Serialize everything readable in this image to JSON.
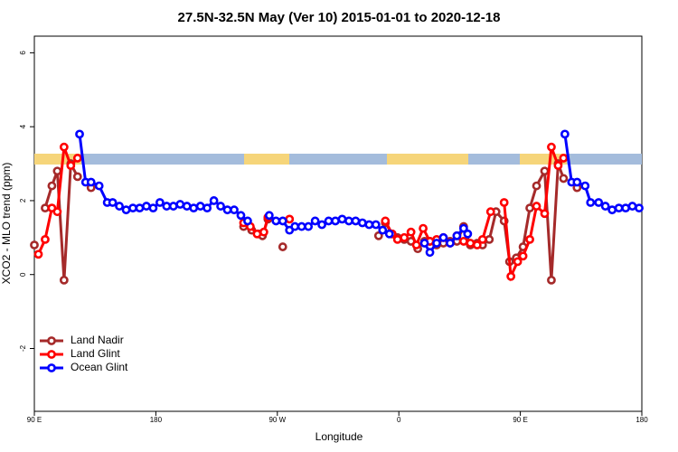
{
  "chart_data": {
    "type": "line",
    "title": "27.5N-32.5N May (Ver 10)   2015-01-01 to 2020-12-18",
    "x_label": "Longitude",
    "y_label": "XCO2 - MLO trend (ppm)",
    "xlim": [
      90,
      540
    ],
    "ylim": [
      -3.7,
      6.45
    ],
    "xticks": [
      {
        "value": 90,
        "label": "90 E"
      },
      180,
      {
        "value": 270,
        "label": "90 W"
      },
      {
        "value": 360,
        "label": "0"
      },
      {
        "value": 450,
        "label": "90 E"
      },
      {
        "value": 540,
        "label": "180"
      }
    ],
    "yticks": [
      -2,
      0,
      2,
      4,
      6
    ],
    "legend": "bottomleft",
    "series": [
      {
        "name": "Land Nadir",
        "color": "#a52a2a",
        "x": [
          90,
          98,
          103,
          107,
          112,
          117,
          122,
          132,
          245,
          251,
          256,
          259,
          263,
          274,
          345,
          350,
          355,
          359,
          364,
          369,
          374,
          379,
          383,
          388,
          393,
          398,
          403,
          408,
          413,
          418,
          422,
          427,
          432,
          438,
          442,
          447,
          452,
          457,
          462,
          468,
          473,
          478,
          482,
          492
        ],
        "values": [
          0.8,
          1.8,
          2.4,
          2.8,
          -0.15,
          3.0,
          2.65,
          2.35,
          1.3,
          1.2,
          1.1,
          1.05,
          1.5,
          0.75,
          1.05,
          1.4,
          1.1,
          1.0,
          0.95,
          0.9,
          0.7,
          0.9,
          0.9,
          0.8,
          0.85,
          0.9,
          0.9,
          1.3,
          0.8,
          0.85,
          0.8,
          0.95,
          1.7,
          1.45,
          0.35,
          0.45,
          0.75,
          1.8,
          2.4,
          2.8,
          -0.15,
          3.0,
          2.6,
          2.35
        ]
      },
      {
        "name": "Land Glint",
        "color": "#ff0000",
        "x": [
          93,
          98,
          103,
          107,
          112,
          117,
          122,
          245,
          250,
          255,
          260,
          263,
          279,
          350,
          355,
          359,
          364,
          369,
          373,
          378,
          383,
          388,
          393,
          398,
          403,
          408,
          413,
          418,
          422,
          428,
          438,
          443,
          448,
          452,
          457,
          462,
          468,
          473,
          478,
          482
        ],
        "values": [
          0.55,
          0.95,
          1.8,
          1.7,
          3.45,
          2.95,
          3.15,
          1.4,
          1.3,
          1.1,
          1.15,
          1.55,
          1.5,
          1.45,
          1.1,
          0.95,
          1.0,
          1.15,
          0.8,
          1.25,
          0.9,
          0.95,
          1.0,
          0.85,
          1.05,
          0.9,
          0.85,
          0.8,
          0.95,
          1.7,
          1.95,
          -0.05,
          0.35,
          0.5,
          0.95,
          1.85,
          1.65,
          3.45,
          2.95,
          3.15
        ]
      },
      {
        "name": "Ocean Glint",
        "color": "#0000ff",
        "x": [
          123.5,
          128,
          132,
          138,
          144,
          148,
          153,
          158,
          163,
          168,
          173,
          178,
          183,
          188,
          193,
          198,
          203,
          208,
          213,
          218,
          223,
          228,
          233,
          238,
          243,
          248,
          264,
          269,
          274,
          279,
          283,
          288,
          293,
          298,
          303,
          308,
          313,
          318,
          323,
          328,
          333,
          338,
          343,
          348,
          353,
          379,
          383,
          388,
          393,
          398,
          403,
          408,
          411,
          483,
          488,
          492,
          498,
          502,
          508,
          513,
          518,
          523,
          528,
          533,
          538
        ],
        "values": [
          3.8,
          2.5,
          2.5,
          2.4,
          1.95,
          1.95,
          1.85,
          1.75,
          1.8,
          1.8,
          1.85,
          1.8,
          1.95,
          1.85,
          1.85,
          1.9,
          1.85,
          1.8,
          1.85,
          1.8,
          2.0,
          1.85,
          1.75,
          1.75,
          1.6,
          1.45,
          1.6,
          1.45,
          1.45,
          1.2,
          1.3,
          1.3,
          1.3,
          1.45,
          1.35,
          1.45,
          1.45,
          1.5,
          1.45,
          1.45,
          1.4,
          1.35,
          1.35,
          1.2,
          1.1,
          0.85,
          0.6,
          0.85,
          1.0,
          0.85,
          1.05,
          1.25,
          1.1,
          3.8,
          2.5,
          2.5,
          2.4,
          1.95,
          1.95,
          1.85,
          1.75,
          1.8,
          1.8,
          1.85,
          1.8
        ]
      }
    ]
  }
}
